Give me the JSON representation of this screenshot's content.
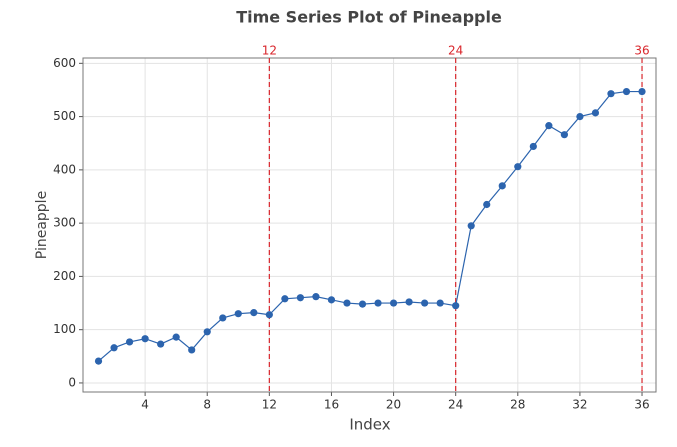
{
  "chart_data": {
    "type": "line",
    "title": "Time Series Plot of Pineapple",
    "x_label": "Index",
    "y_label": "Pineapple",
    "x": [
      1,
      2,
      3,
      4,
      5,
      6,
      7,
      8,
      9,
      10,
      11,
      12,
      13,
      14,
      15,
      16,
      17,
      18,
      19,
      20,
      21,
      22,
      23,
      24,
      25,
      26,
      27,
      28,
      29,
      30,
      31,
      32,
      33,
      34,
      35,
      36
    ],
    "series": [
      {
        "name": "Pineapple",
        "color": "#2c64ae",
        "values": [
          41,
          66,
          77,
          83,
          73,
          86,
          62,
          96,
          122,
          130,
          132,
          128,
          158,
          160,
          162,
          156,
          150,
          148,
          150,
          150,
          152,
          150,
          150,
          145,
          295,
          335,
          370,
          406,
          444,
          483,
          466,
          500,
          507,
          543,
          547,
          547
        ]
      }
    ],
    "xlim": [
      0,
      36.9
    ],
    "ylim": [
      -17,
      610
    ],
    "xticks": [
      4,
      8,
      12,
      16,
      20,
      24,
      28,
      32,
      36
    ],
    "yticks": [
      0,
      100,
      200,
      300,
      400,
      500,
      600
    ],
    "reference_lines": [
      12,
      24,
      36
    ],
    "reference_color": "#d9262c",
    "grid": true
  }
}
